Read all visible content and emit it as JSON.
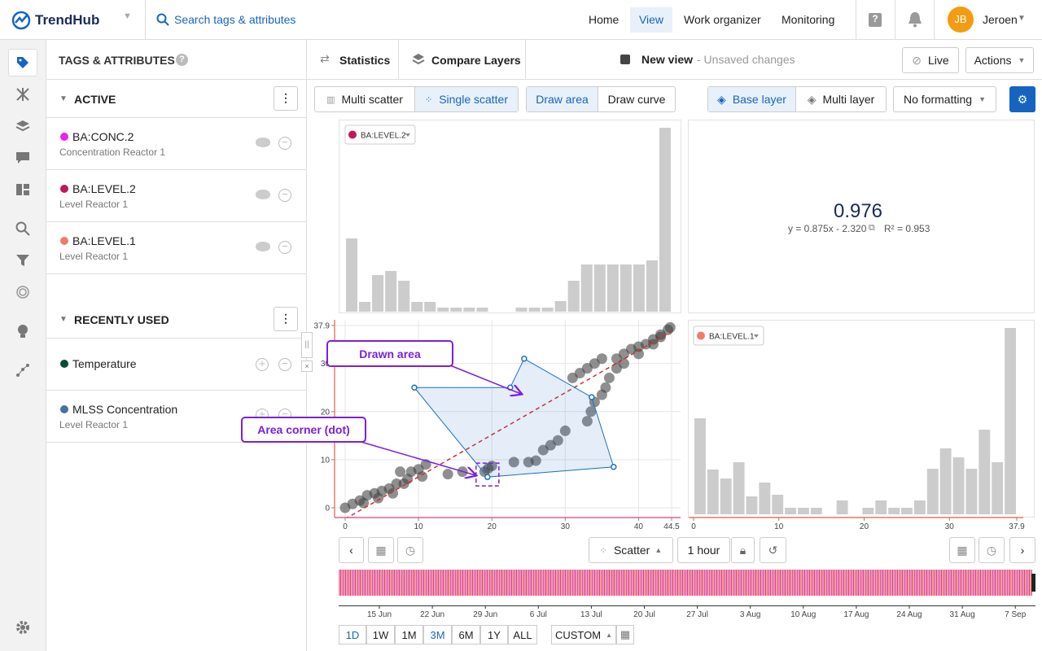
{
  "header": {
    "logo": "TrendHub",
    "search": "Search tags & attributes",
    "nav": [
      "Home",
      "View",
      "Work organizer",
      "Monitoring"
    ],
    "user_initials": "JB",
    "user_name": "Jeroen"
  },
  "panel": {
    "title": "TAGS & ATTRIBUTES",
    "active": {
      "title": "ACTIVE",
      "items": [
        {
          "name": "BA:CONC.2",
          "description": "Concentration Reactor 1",
          "color": "#ec20e6"
        },
        {
          "name": "BA:LEVEL.2",
          "description": "Level Reactor 1",
          "color": "#c2185b"
        },
        {
          "name": "BA:LEVEL.1",
          "description": "Level Reactor 1",
          "color": "#f07b6a"
        }
      ]
    },
    "recent": {
      "title": "RECENTLY USED",
      "items": [
        {
          "name": "Temperature",
          "color": "#0d4a3a"
        },
        {
          "name": "MLSS Concentration",
          "description": "Level Reactor 1",
          "color": "#4a6fa5"
        }
      ]
    }
  },
  "toolbar": {
    "tabs": [
      "Statistics",
      "Compare Layers"
    ],
    "view_name": "New view",
    "view_status": "- Unsaved changes",
    "live": "Live",
    "actions": "Actions"
  },
  "controls": {
    "scatter_modes": [
      "Multi scatter",
      "Single scatter"
    ],
    "draw_modes": [
      "Draw area",
      "Draw curve"
    ],
    "layers": [
      "Base layer",
      "Multi layer"
    ],
    "formatting": "No formatting"
  },
  "statistics": {
    "value": "0.976",
    "equation": "y = 0.875x - 2.320",
    "r_squared": "R² = 0.953"
  },
  "chart_data": [
    {
      "type": "histogram",
      "legend": "BA:LEVEL.2",
      "legend_color": "#c2185b",
      "color": "#cccccc",
      "xlim": [
        0,
        44.5
      ],
      "ylim": [
        0,
        230
      ],
      "bins": [
        0,
        1.78,
        3.56,
        5.34,
        7.12,
        8.9,
        10.68,
        12.46,
        14.24,
        16.02,
        17.8,
        19.58,
        21.36,
        23.14,
        24.92,
        26.7,
        28.48,
        30.26,
        32.04,
        33.82,
        35.6,
        37.38,
        39.16,
        40.94,
        42.72,
        44.5
      ],
      "values": [
        90,
        12,
        45,
        50,
        38,
        12,
        12,
        5,
        5,
        5,
        5,
        0,
        0,
        5,
        5,
        5,
        13,
        38,
        58,
        58,
        58,
        58,
        58,
        63,
        226
      ]
    },
    {
      "type": "scatter",
      "color": "#444444",
      "x_axis_color": "#e0609a",
      "y_axis_color": "#f07b6a",
      "grid": true,
      "xlim": [
        0,
        44.5
      ],
      "ylim": [
        0,
        37.9
      ],
      "xticks": [
        0,
        10,
        20,
        30,
        40,
        44.5
      ],
      "yticks": [
        0,
        10,
        20,
        30,
        37.9
      ],
      "x": [
        0,
        1,
        2,
        3,
        2.5,
        4,
        5,
        4.5,
        6,
        7,
        6.5,
        8,
        8.5,
        9,
        10,
        11,
        10.5,
        7.5,
        14,
        16,
        19,
        19.5,
        20,
        23,
        25,
        26,
        27,
        28,
        29,
        30,
        33,
        33.5,
        34,
        35,
        35.5,
        36,
        31,
        32,
        33,
        34,
        35,
        37,
        38,
        39,
        40,
        41,
        42,
        43,
        44,
        44.3,
        37,
        38,
        40,
        42,
        43
      ],
      "values": [
        0,
        0.8,
        1.5,
        2.6,
        1,
        3,
        3.5,
        2,
        4,
        5,
        3,
        5,
        6,
        7.5,
        8,
        9,
        6.5,
        7.5,
        7,
        7.5,
        7.5,
        8.2,
        8.7,
        9.5,
        9.5,
        9.8,
        12,
        13,
        14,
        16,
        18,
        20,
        22,
        23.5,
        25,
        27,
        27,
        28,
        29,
        30,
        31,
        31,
        32,
        33,
        33.5,
        34,
        35,
        36,
        37,
        37.5,
        29,
        30,
        32,
        34,
        35.5
      ],
      "fit": {
        "slope": 0.875,
        "intercept": -2.32,
        "color": "#d32f2f"
      },
      "area": {
        "x": [
          9.43,
          22.5,
          24.4,
          33.6,
          36.6,
          19.4
        ],
        "y": [
          25,
          25,
          31,
          23,
          8.5,
          6.4
        ],
        "color": "#1e6fc2"
      },
      "annotations": [
        "Drawn area",
        "Area corner (dot)"
      ]
    },
    {
      "type": "histogram",
      "legend": "BA:LEVEL.1",
      "legend_color": "#f07b6a",
      "color": "#cccccc",
      "xlim": [
        0,
        37.9
      ],
      "ylim": [
        0,
        230
      ],
      "xticks": [
        0,
        10,
        20,
        30,
        37.9
      ],
      "bins": [
        0,
        1.516,
        3.032,
        4.548,
        6.064,
        7.58,
        9.096,
        10.612,
        12.128,
        13.644,
        15.16,
        16.676,
        18.192,
        19.708,
        21.224,
        22.74,
        24.256,
        25.772,
        27.288,
        28.804,
        30.32,
        31.836,
        33.352,
        34.868,
        36.384,
        37.9
      ],
      "values": [
        118,
        55,
        44,
        64,
        22,
        39,
        24,
        8,
        8,
        8,
        0,
        17,
        0,
        8,
        17,
        8,
        8,
        17,
        56,
        81,
        70,
        56,
        104,
        64,
        229
      ]
    }
  ],
  "bottom": {
    "chart_mode": "Scatter",
    "interval": "1 hour",
    "timeline": [
      "15 Jun",
      "22 Jun",
      "29 Jun",
      "6 Jul",
      "13 Jul",
      "20 Jul",
      "27 Jul",
      "3 Aug",
      "10 Aug",
      "17 Aug",
      "24 Aug",
      "31 Aug",
      "7 Sep"
    ],
    "ranges": [
      "1D",
      "1W",
      "1M",
      "3M",
      "6M",
      "1Y",
      "ALL"
    ],
    "custom": "CUSTOM"
  }
}
